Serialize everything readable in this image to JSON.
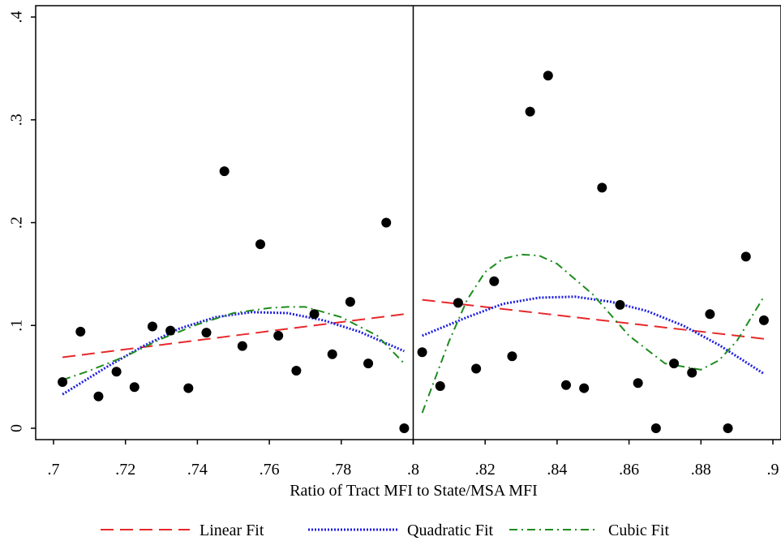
{
  "chart_data": {
    "type": "scatter",
    "title": "",
    "xlabel": "Ratio of Tract MFI to State/MSA MFI",
    "ylabel": "",
    "xlim": [
      0.7,
      0.9
    ],
    "ylim": [
      0,
      0.4
    ],
    "x_ticks": [
      0.7,
      0.72,
      0.74,
      0.76,
      0.78,
      0.8,
      0.82,
      0.84,
      0.86,
      0.88,
      0.9
    ],
    "x_tick_labels": [
      ".7",
      ".72",
      ".74",
      ".76",
      ".78",
      ".8",
      ".82",
      ".84",
      ".86",
      ".88",
      ".9"
    ],
    "y_ticks": [
      0,
      0.1,
      0.2,
      0.3,
      0.4
    ],
    "y_tick_labels": [
      "0",
      ".1",
      ".2",
      ".3",
      ".4"
    ],
    "grid": false,
    "cutoff": 0.8,
    "legend_position": "bottom",
    "points": [
      {
        "x": 0.7025,
        "y": 0.045
      },
      {
        "x": 0.7075,
        "y": 0.094
      },
      {
        "x": 0.7125,
        "y": 0.031
      },
      {
        "x": 0.7175,
        "y": 0.055
      },
      {
        "x": 0.7225,
        "y": 0.04
      },
      {
        "x": 0.7275,
        "y": 0.099
      },
      {
        "x": 0.7325,
        "y": 0.095
      },
      {
        "x": 0.7375,
        "y": 0.039
      },
      {
        "x": 0.7425,
        "y": 0.093
      },
      {
        "x": 0.7475,
        "y": 0.25
      },
      {
        "x": 0.7525,
        "y": 0.08
      },
      {
        "x": 0.7575,
        "y": 0.179
      },
      {
        "x": 0.7625,
        "y": 0.09
      },
      {
        "x": 0.7675,
        "y": 0.056
      },
      {
        "x": 0.7725,
        "y": 0.111
      },
      {
        "x": 0.7775,
        "y": 0.072
      },
      {
        "x": 0.7825,
        "y": 0.123
      },
      {
        "x": 0.7875,
        "y": 0.063
      },
      {
        "x": 0.7925,
        "y": 0.2
      },
      {
        "x": 0.7975,
        "y": 0.0
      },
      {
        "x": 0.8025,
        "y": 0.074
      },
      {
        "x": 0.8075,
        "y": 0.041
      },
      {
        "x": 0.8125,
        "y": 0.122
      },
      {
        "x": 0.8175,
        "y": 0.058
      },
      {
        "x": 0.8225,
        "y": 0.143
      },
      {
        "x": 0.8275,
        "y": 0.07
      },
      {
        "x": 0.8325,
        "y": 0.308
      },
      {
        "x": 0.8375,
        "y": 0.343
      },
      {
        "x": 0.8425,
        "y": 0.042
      },
      {
        "x": 0.8475,
        "y": 0.039
      },
      {
        "x": 0.8525,
        "y": 0.234
      },
      {
        "x": 0.8575,
        "y": 0.12
      },
      {
        "x": 0.8625,
        "y": 0.044
      },
      {
        "x": 0.8675,
        "y": 0.0
      },
      {
        "x": 0.8725,
        "y": 0.063
      },
      {
        "x": 0.8775,
        "y": 0.054
      },
      {
        "x": 0.8825,
        "y": 0.111
      },
      {
        "x": 0.8875,
        "y": 0.0
      },
      {
        "x": 0.8925,
        "y": 0.167
      },
      {
        "x": 0.8975,
        "y": 0.105
      }
    ],
    "series": [
      {
        "name": "Linear Fit",
        "color": "#e8282b",
        "dash": "dashed",
        "segments": [
          {
            "x": [
              0.7025,
              0.7975
            ],
            "y": [
              0.069,
              0.111
            ]
          },
          {
            "x": [
              0.8025,
              0.8975
            ],
            "y": [
              0.125,
              0.087
            ]
          }
        ]
      },
      {
        "name": "Quadratic Fit",
        "color": "#1f1fe0",
        "dash": "dotted",
        "segments": [
          {
            "x": [
              0.7025,
              0.715,
              0.725,
              0.735,
              0.745,
              0.755,
              0.765,
              0.775,
              0.785,
              0.7975
            ],
            "y": [
              0.033,
              0.06,
              0.08,
              0.097,
              0.108,
              0.113,
              0.112,
              0.105,
              0.094,
              0.075
            ]
          },
          {
            "x": [
              0.8025,
              0.815,
              0.825,
              0.835,
              0.845,
              0.855,
              0.865,
              0.875,
              0.885,
              0.8975
            ],
            "y": [
              0.09,
              0.108,
              0.121,
              0.127,
              0.128,
              0.123,
              0.114,
              0.1,
              0.081,
              0.053
            ]
          }
        ]
      },
      {
        "name": "Cubic Fit",
        "color": "#1e8c1e",
        "dash": "dashdot",
        "segments": [
          {
            "x": [
              0.7025,
              0.71,
              0.72,
              0.73,
              0.74,
              0.75,
              0.76,
              0.765,
              0.77,
              0.78,
              0.79,
              0.7975
            ],
            "y": [
              0.047,
              0.056,
              0.07,
              0.087,
              0.101,
              0.112,
              0.117,
              0.118,
              0.118,
              0.108,
              0.09,
              0.063
            ]
          },
          {
            "x": [
              0.8025,
              0.81,
              0.815,
              0.82,
              0.825,
              0.83,
              0.835,
              0.84,
              0.85,
              0.86,
              0.87,
              0.88,
              0.885,
              0.89,
              0.8975
            ],
            "y": [
              0.015,
              0.085,
              0.125,
              0.152,
              0.165,
              0.169,
              0.168,
              0.16,
              0.13,
              0.09,
              0.063,
              0.057,
              0.066,
              0.085,
              0.128
            ]
          }
        ]
      }
    ]
  }
}
